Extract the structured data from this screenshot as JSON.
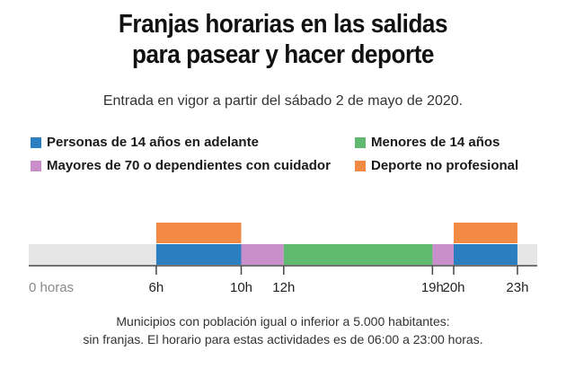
{
  "title_lines": [
    "Franjas horarias en las salidas",
    "para pasear y hacer deporte"
  ],
  "subtitle": "Entrada en vigor a partir del sábado 2 de mayo de 2020.",
  "legend": [
    {
      "label": "Personas de 14 años en adelante",
      "color": "#2b7fc0"
    },
    {
      "label": "Menores de 14 años",
      "color": "#5fba6f"
    },
    {
      "label": "Mayores de 70 o dependientes con cuidador",
      "color": "#c98fcb"
    },
    {
      "label": "Deporte no profesional",
      "color": "#f28a45"
    }
  ],
  "chart_data": {
    "type": "bar",
    "orientation": "horizontal-timeline",
    "x_unit": "horas",
    "xlim": [
      0,
      24
    ],
    "ticks": [
      {
        "value": 0,
        "label": "0 horas"
      },
      {
        "value": 6,
        "label": "6h"
      },
      {
        "value": 10,
        "label": "10h"
      },
      {
        "value": 12,
        "label": "12h"
      },
      {
        "value": 19,
        "label": "19h"
      },
      {
        "value": 20,
        "label": "20h"
      },
      {
        "value": 23,
        "label": "23h"
      }
    ],
    "series": [
      {
        "name": "Personas de 14 años en adelante",
        "color": "#2b7fc0",
        "row": 0,
        "intervals": [
          [
            6,
            10
          ],
          [
            20,
            23
          ]
        ]
      },
      {
        "name": "Mayores de 70 o dependientes con cuidador",
        "color": "#c98fcb",
        "row": 0,
        "intervals": [
          [
            10,
            12
          ],
          [
            19,
            20
          ]
        ]
      },
      {
        "name": "Menores de 14 años",
        "color": "#5fba6f",
        "row": 0,
        "intervals": [
          [
            12,
            19
          ]
        ]
      },
      {
        "name": "Deporte no profesional",
        "color": "#f28a45",
        "row": 1,
        "intervals": [
          [
            6,
            10
          ],
          [
            20,
            23
          ]
        ]
      }
    ],
    "background_color": "#e6e6e6"
  },
  "footnote_lines": [
    "Municipios con población igual o inferior a 5.000 habitantes:",
    "sin franjas. El horario para estas actividades es de 06:00 a 23:00 horas."
  ]
}
